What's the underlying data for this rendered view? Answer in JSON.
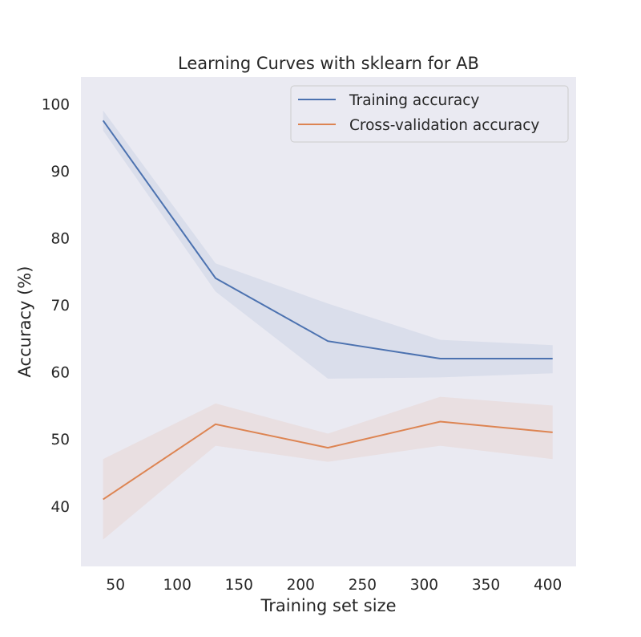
{
  "chart_data": {
    "type": "line",
    "title": "Learning Curves with sklearn for AB",
    "xlabel": "Training set size",
    "ylabel": "Accuracy (%)",
    "xlim": [
      22,
      423
    ],
    "ylim": [
      31,
      104
    ],
    "xticks": [
      50,
      100,
      150,
      200,
      250,
      300,
      350,
      400
    ],
    "yticks": [
      40,
      50,
      60,
      70,
      80,
      90,
      100
    ],
    "grid": false,
    "legend_position": "top-right",
    "x": [
      40,
      131,
      222,
      313,
      404
    ],
    "series": [
      {
        "name": "Training accuracy",
        "color": "#4c72b0",
        "band_color": "#4c72b0",
        "values": [
          97.5,
          74.0,
          64.6,
          62.0,
          62.0
        ],
        "band_upper": [
          99.0,
          76.2,
          70.2,
          64.8,
          64.0
        ],
        "band_lower": [
          96.0,
          72.0,
          59.0,
          59.2,
          59.8
        ]
      },
      {
        "name": "Cross-validation accuracy",
        "color": "#dd8452",
        "band_color": "#dd8452",
        "values": [
          41.0,
          52.2,
          48.7,
          52.6,
          51.0
        ],
        "band_upper": [
          47.0,
          55.3,
          50.8,
          56.3,
          55.0
        ],
        "band_lower": [
          35.0,
          49.0,
          46.6,
          49.0,
          47.0
        ]
      }
    ]
  }
}
